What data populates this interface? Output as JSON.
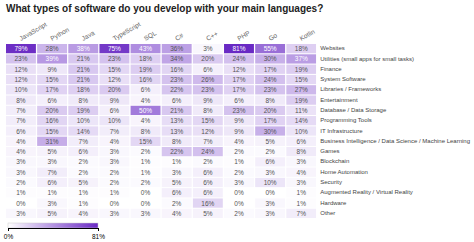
{
  "chart_data": {
    "type": "heatmap",
    "title": "What types of software do you develop with your main languages?",
    "categories": [
      "JavaScript",
      "Python",
      "Java",
      "TypeScript",
      "SQL",
      "C#",
      "C++",
      "PHP",
      "Go",
      "Kotlin"
    ],
    "row_labels": [
      "Websites",
      "Utilities (small apps for small tasks)",
      "Finance",
      "System Software",
      "Libraries / Frameworks",
      "Entertainment",
      "Database / Data Storage",
      "Programming Tools",
      "IT Infrastructure",
      "Business Intelligence / Data Science / Machine Learning",
      "Games",
      "Blockchain",
      "Home Automation",
      "Security",
      "Augmented Reality / Virtual Reality",
      "Hardware",
      "Other"
    ],
    "values": [
      [
        79,
        28,
        38,
        75,
        43,
        36,
        3,
        81,
        55,
        18
      ],
      [
        23,
        39,
        21,
        23,
        18,
        34,
        20,
        24,
        30,
        37
      ],
      [
        12,
        9,
        21,
        15,
        19,
        16,
        6,
        12,
        17,
        19
      ],
      [
        12,
        15,
        21,
        12,
        16,
        23,
        26,
        17,
        24,
        15
      ],
      [
        10,
        17,
        18,
        20,
        6,
        22,
        23,
        17,
        23,
        27
      ],
      [
        8,
        6,
        8,
        9,
        4,
        6,
        9,
        6,
        8,
        19
      ],
      [
        7,
        20,
        19,
        6,
        50,
        21,
        8,
        23,
        20,
        11
      ],
      [
        7,
        16,
        10,
        10,
        4,
        13,
        15,
        9,
        17,
        14
      ],
      [
        6,
        15,
        14,
        7,
        8,
        13,
        12,
        9,
        30,
        10
      ],
      [
        4,
        31,
        7,
        4,
        15,
        8,
        7,
        4,
        5,
        6
      ],
      [
        4,
        5,
        6,
        3,
        2,
        22,
        24,
        2,
        2,
        8
      ],
      [
        3,
        3,
        2,
        3,
        1,
        1,
        2,
        1,
        6,
        3
      ],
      [
        3,
        7,
        2,
        2,
        1,
        3,
        6,
        2,
        3,
        4
      ],
      [
        2,
        6,
        5,
        2,
        2,
        5,
        6,
        3,
        10,
        3
      ],
      [
        1,
        1,
        1,
        1,
        0,
        6,
        6,
        0,
        0,
        1
      ],
      [
        0,
        3,
        1,
        0,
        0,
        2,
        16,
        0,
        3,
        1
      ],
      [
        3,
        5,
        4,
        3,
        3,
        4,
        5,
        2,
        3,
        7
      ]
    ],
    "value_labels": [
      [
        "79%",
        "28%",
        "38%",
        "75%",
        "43%",
        "36%",
        "3%",
        "81%",
        "55%",
        "18%"
      ],
      [
        "23%",
        "39%",
        "21%",
        "23%",
        "18%",
        "34%",
        "20%",
        "24%",
        "30%",
        "37%"
      ],
      [
        "12%",
        "9%",
        "21%",
        "15%",
        "19%",
        "16%",
        "6%",
        "12%",
        "17%",
        "19%"
      ],
      [
        "12%",
        "15%",
        "21%",
        "12%",
        "16%",
        "23%",
        "26%",
        "17%",
        "24%",
        "15%"
      ],
      [
        "10%",
        "17%",
        "18%",
        "20%",
        "6%",
        "22%",
        "23%",
        "17%",
        "23%",
        "27%"
      ],
      [
        "8%",
        "6%",
        "8%",
        "9%",
        "4%",
        "6%",
        "9%",
        "6%",
        "8%",
        "19%"
      ],
      [
        "7%",
        "20%",
        "19%",
        "6%",
        "50%",
        "21%",
        "8%",
        "23%",
        "20%",
        "11%"
      ],
      [
        "7%",
        "16%",
        "10%",
        "10%",
        "4%",
        "13%",
        "15%",
        "9%",
        "17%",
        "14%"
      ],
      [
        "6%",
        "15%",
        "14%",
        "7%",
        "8%",
        "13%",
        "12%",
        "9%",
        "30%",
        "10%"
      ],
      [
        "4%",
        "31%",
        "7%",
        "4%",
        "15%",
        "8%",
        "7%",
        "4%",
        "5%",
        "6%"
      ],
      [
        "4%",
        "5%",
        "6%",
        "3%",
        "2%",
        "22%",
        "24%",
        "2%",
        "2%",
        "8%"
      ],
      [
        "3%",
        "3%",
        "2%",
        "3%",
        "1%",
        "1%",
        "2%",
        "1%",
        "6%",
        "3%"
      ],
      [
        "3%",
        "7%",
        "2%",
        "2%",
        "1%",
        "3%",
        "6%",
        "2%",
        "3%",
        "4%"
      ],
      [
        "2%",
        "6%",
        "5%",
        "2%",
        "2%",
        "5%",
        "6%",
        "3%",
        "10%",
        "3%"
      ],
      [
        "1%",
        "1%",
        "1%",
        "1%",
        "0%",
        "6%",
        "6%",
        "0%",
        "0%",
        "1%"
      ],
      [
        "0%",
        "3%",
        "1%",
        "0%",
        "0%",
        "2%",
        "16%",
        "0%",
        "3%",
        "1%"
      ],
      [
        "3%",
        "5%",
        "4%",
        "3%",
        "3%",
        "4%",
        "5%",
        "2%",
        "3%",
        "7%"
      ]
    ],
    "data_labels": true,
    "colorbar": {
      "range": [
        0,
        81
      ],
      "ticks": [
        {
          "value": 0,
          "label": "0%"
        },
        {
          "value": 81,
          "label": "81%"
        }
      ],
      "colors": [
        "#ffffff",
        "#6929c4"
      ]
    }
  }
}
